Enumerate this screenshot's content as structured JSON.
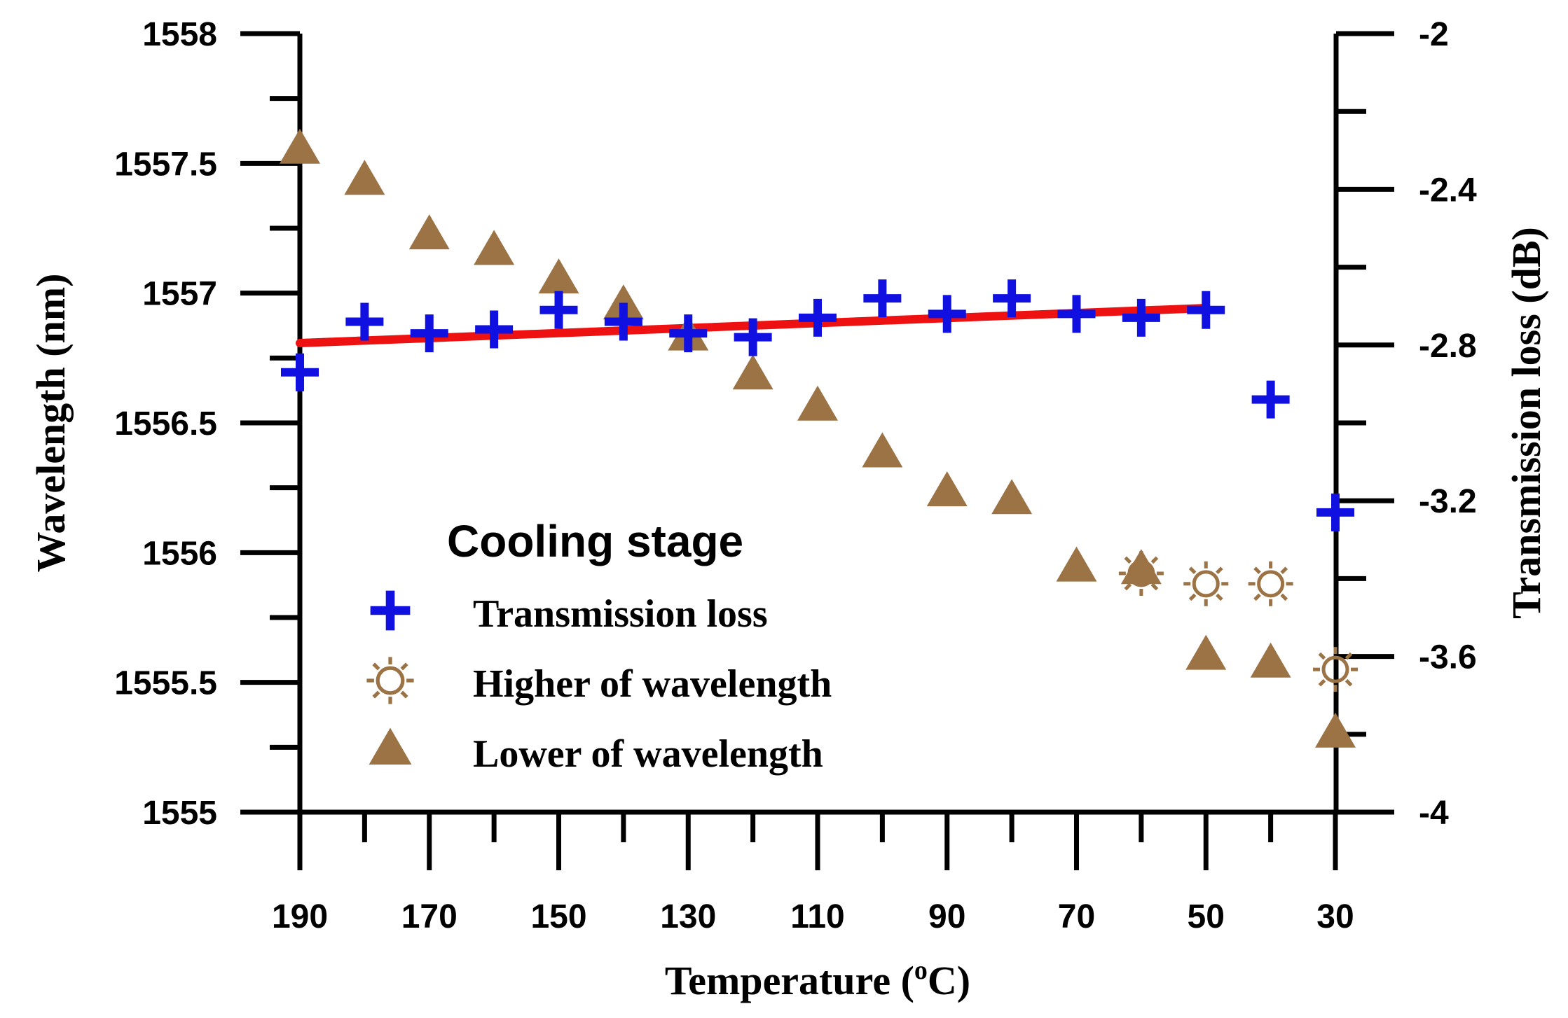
{
  "chart_data": {
    "type": "scatter",
    "xlabel": "Temperature (",
    "xlabel_sup": "o",
    "xlabel_end": "C)",
    "ylabel": "Wavelength (nm)",
    "y2label": "Transmission loss (dB)",
    "x_reversed": true,
    "xlim": [
      190,
      30
    ],
    "ylim": [
      1555,
      1558
    ],
    "y2lim": [
      -4,
      -2
    ],
    "x_ticks": [
      "190",
      "170",
      "150",
      "130",
      "110",
      "90",
      "70",
      "50",
      "30"
    ],
    "y_ticks": [
      "1555",
      "1555.5",
      "1556",
      "1556.5",
      "1557",
      "1557.5",
      "1558"
    ],
    "y2_ticks": [
      "-4",
      "-3.6",
      "-3.2",
      "-2.8",
      "-2.4",
      "-2"
    ],
    "legend_title": "Cooling stage",
    "legend_placement": "lower-center",
    "series": [
      {
        "name": "Transmission loss",
        "axis": "right",
        "marker": "plus",
        "color": "#1010e0",
        "points": [
          [
            190,
            -2.87
          ],
          [
            180,
            -2.74
          ],
          [
            170,
            -2.77
          ],
          [
            160,
            -2.76
          ],
          [
            150,
            -2.71
          ],
          [
            140,
            -2.74
          ],
          [
            130,
            -2.77
          ],
          [
            120,
            -2.78
          ],
          [
            110,
            -2.73
          ],
          [
            100,
            -2.68
          ],
          [
            90,
            -2.72
          ],
          [
            80,
            -2.68
          ],
          [
            70,
            -2.72
          ],
          [
            60,
            -2.73
          ],
          [
            50,
            -2.71
          ],
          [
            40,
            -2.94
          ],
          [
            30,
            -3.23
          ]
        ]
      },
      {
        "name": "Higher of wavelength",
        "axis": "left",
        "marker": "sun",
        "color": "#9b7344",
        "points": [
          [
            60,
            1555.92
          ],
          [
            50,
            1555.88
          ],
          [
            40,
            1555.88
          ],
          [
            30,
            1555.55
          ]
        ]
      },
      {
        "name": "Lower of wavelength",
        "axis": "left",
        "marker": "triangle",
        "color": "#9b7344",
        "points": [
          [
            190,
            1557.55
          ],
          [
            180,
            1557.43
          ],
          [
            170,
            1557.22
          ],
          [
            160,
            1557.16
          ],
          [
            150,
            1557.05
          ],
          [
            140,
            1556.95
          ],
          [
            130,
            1556.83
          ],
          [
            120,
            1556.68
          ],
          [
            110,
            1556.56
          ],
          [
            100,
            1556.38
          ],
          [
            90,
            1556.23
          ],
          [
            80,
            1556.2
          ],
          [
            70,
            1555.94
          ],
          [
            60,
            1555.93
          ],
          [
            50,
            1555.6
          ],
          [
            40,
            1555.57
          ],
          [
            30,
            1555.3
          ]
        ]
      }
    ],
    "fit_line": {
      "axis": "right",
      "color": "#ee1111",
      "points": [
        [
          190,
          -2.795
        ],
        [
          50,
          -2.705
        ]
      ]
    }
  }
}
